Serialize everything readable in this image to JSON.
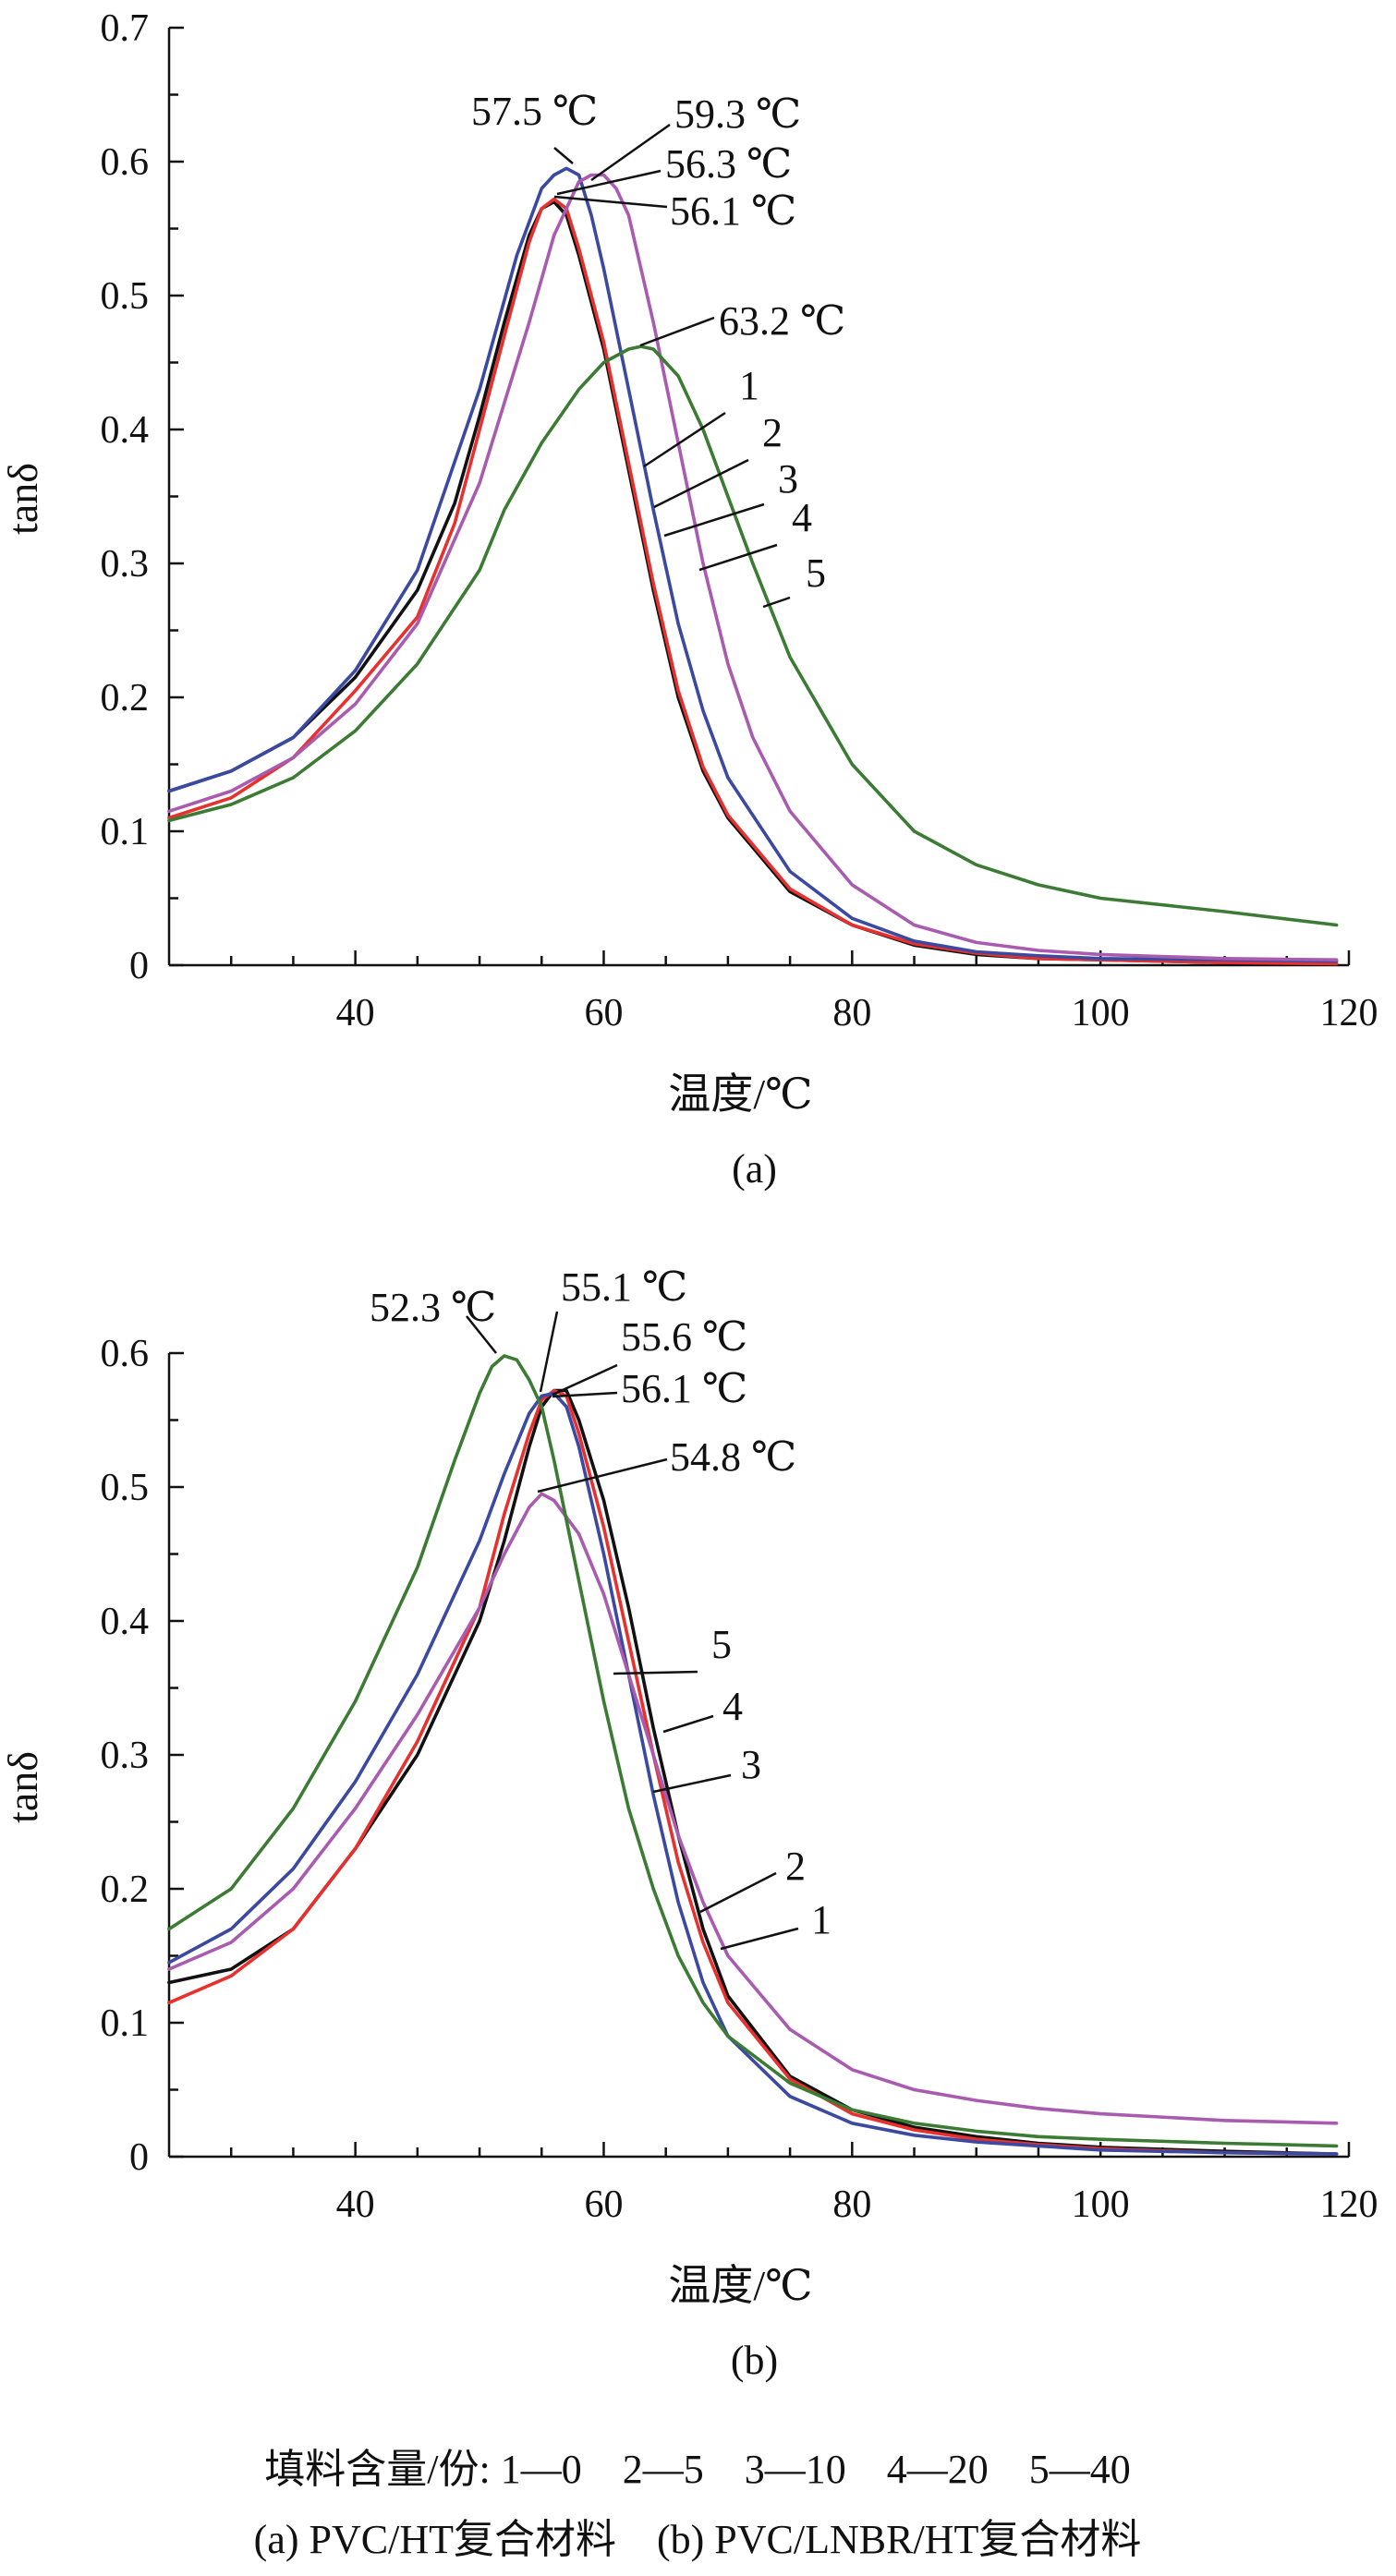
{
  "colors": {
    "1": "#111111",
    "2": "#e8312f",
    "3": "#3b4aa0",
    "4": "#a95bb0",
    "5": "#3c7b34"
  },
  "chart_data": [
    {
      "type": "line",
      "caption": "(a)",
      "xlabel": "温度/℃",
      "ylabel": "tanδ",
      "xlim": [
        25,
        120
      ],
      "ylim": [
        0,
        0.7
      ],
      "xticks": [
        40,
        60,
        80,
        100,
        120
      ],
      "yticks": [
        0,
        0.1,
        0.2,
        0.3,
        0.4,
        0.5,
        0.6,
        0.7
      ],
      "grid": false,
      "series": [
        {
          "name": "1",
          "color_key": "1",
          "x": [
            25,
            30,
            35,
            40,
            45,
            48,
            50,
            52,
            54,
            55,
            56,
            57,
            58,
            60,
            62,
            64,
            66,
            68,
            70,
            75,
            80,
            85,
            90,
            95,
            100,
            110,
            119
          ],
          "y": [
            0.13,
            0.145,
            0.17,
            0.215,
            0.28,
            0.345,
            0.41,
            0.48,
            0.545,
            0.565,
            0.57,
            0.56,
            0.53,
            0.46,
            0.37,
            0.28,
            0.2,
            0.145,
            0.11,
            0.055,
            0.03,
            0.015,
            0.008,
            0.005,
            0.004,
            0.002,
            0.001
          ]
        },
        {
          "name": "2",
          "color_key": "2",
          "x": [
            25,
            30,
            35,
            40,
            45,
            48,
            50,
            52,
            54,
            55,
            56,
            57,
            58,
            60,
            62,
            64,
            66,
            68,
            70,
            75,
            80,
            85,
            90,
            95,
            100,
            110,
            119
          ],
          "y": [
            0.11,
            0.125,
            0.155,
            0.205,
            0.26,
            0.33,
            0.4,
            0.47,
            0.54,
            0.565,
            0.572,
            0.565,
            0.535,
            0.465,
            0.375,
            0.285,
            0.205,
            0.148,
            0.112,
            0.057,
            0.03,
            0.016,
            0.009,
            0.005,
            0.004,
            0.002,
            0.001
          ]
        },
        {
          "name": "3",
          "color_key": "3",
          "x": [
            25,
            30,
            35,
            40,
            45,
            50,
            53,
            55,
            56,
            57,
            58,
            59,
            60,
            62,
            64,
            66,
            68,
            70,
            75,
            80,
            85,
            90,
            95,
            100,
            110,
            119
          ],
          "y": [
            0.13,
            0.145,
            0.17,
            0.22,
            0.295,
            0.43,
            0.53,
            0.58,
            0.59,
            0.595,
            0.59,
            0.56,
            0.52,
            0.43,
            0.34,
            0.255,
            0.19,
            0.14,
            0.07,
            0.035,
            0.018,
            0.01,
            0.007,
            0.005,
            0.004,
            0.003
          ]
        },
        {
          "name": "4",
          "color_key": "4",
          "x": [
            25,
            30,
            35,
            40,
            45,
            50,
            54,
            56,
            58,
            59,
            60,
            61,
            62,
            64,
            66,
            68,
            70,
            72,
            75,
            80,
            85,
            90,
            95,
            100,
            110,
            119
          ],
          "y": [
            0.115,
            0.13,
            0.155,
            0.195,
            0.255,
            0.36,
            0.48,
            0.545,
            0.585,
            0.59,
            0.59,
            0.58,
            0.56,
            0.48,
            0.39,
            0.3,
            0.225,
            0.17,
            0.115,
            0.06,
            0.03,
            0.017,
            0.011,
            0.008,
            0.005,
            0.004
          ]
        },
        {
          "name": "5",
          "color_key": "5",
          "x": [
            25,
            30,
            35,
            40,
            45,
            50,
            52,
            55,
            58,
            60,
            62,
            63,
            64,
            66,
            68,
            70,
            72,
            75,
            80,
            85,
            90,
            95,
            100,
            110,
            119
          ],
          "y": [
            0.108,
            0.12,
            0.14,
            0.175,
            0.225,
            0.295,
            0.34,
            0.39,
            0.43,
            0.45,
            0.46,
            0.462,
            0.46,
            0.44,
            0.4,
            0.35,
            0.3,
            0.23,
            0.15,
            0.1,
            0.075,
            0.06,
            0.05,
            0.04,
            0.03
          ]
        }
      ],
      "peak_labels": [
        {
          "text": "57.5 ℃",
          "x": 57.5,
          "y": 0.595
        },
        {
          "text": "59.3 ℃",
          "x": 59.3,
          "y": 0.59
        },
        {
          "text": "56.3 ℃",
          "x": 56.3,
          "y": 0.572
        },
        {
          "text": "56.1 ℃",
          "x": 56.1,
          "y": 0.57
        },
        {
          "text": "63.2 ℃",
          "x": 63.2,
          "y": 0.462
        }
      ],
      "curve_labels": [
        {
          "text": "1",
          "x": 62.6,
          "y": 0.37
        },
        {
          "text": "2",
          "x": 63.8,
          "y": 0.34
        },
        {
          "text": "3",
          "x": 64.7,
          "y": 0.32
        },
        {
          "text": "4",
          "x": 65.7,
          "y": 0.3
        },
        {
          "text": "5",
          "x": 70.3,
          "y": 0.28
        }
      ]
    },
    {
      "type": "line",
      "caption": "(b)",
      "xlabel": "温度/℃",
      "ylabel": "tanδ",
      "xlim": [
        25,
        120
      ],
      "ylim": [
        0,
        0.6
      ],
      "xticks": [
        40,
        60,
        80,
        100,
        120
      ],
      "yticks": [
        0,
        0.1,
        0.2,
        0.3,
        0.4,
        0.5,
        0.6
      ],
      "grid": false,
      "series": [
        {
          "name": "1",
          "color_key": "1",
          "x": [
            25,
            30,
            35,
            40,
            45,
            50,
            52,
            54,
            55,
            56,
            57,
            58,
            60,
            62,
            64,
            66,
            68,
            70,
            75,
            80,
            85,
            90,
            95,
            100,
            110,
            119
          ],
          "y": [
            0.13,
            0.14,
            0.17,
            0.23,
            0.3,
            0.4,
            0.46,
            0.53,
            0.56,
            0.572,
            0.572,
            0.55,
            0.49,
            0.41,
            0.32,
            0.24,
            0.17,
            0.12,
            0.06,
            0.035,
            0.022,
            0.015,
            0.01,
            0.007,
            0.004,
            0.002
          ]
        },
        {
          "name": "2",
          "color_key": "2",
          "x": [
            25,
            30,
            35,
            40,
            45,
            50,
            52,
            54,
            55,
            56,
            57,
            58,
            60,
            62,
            64,
            66,
            68,
            70,
            75,
            80,
            85,
            90,
            95,
            100,
            110,
            119
          ],
          "y": [
            0.115,
            0.135,
            0.17,
            0.23,
            0.31,
            0.41,
            0.48,
            0.54,
            0.565,
            0.572,
            0.568,
            0.54,
            0.47,
            0.385,
            0.3,
            0.22,
            0.16,
            0.115,
            0.058,
            0.032,
            0.02,
            0.013,
            0.009,
            0.006,
            0.003,
            0.002
          ]
        },
        {
          "name": "3",
          "color_key": "3",
          "x": [
            25,
            30,
            35,
            40,
            45,
            50,
            52,
            54,
            55,
            56,
            57,
            58,
            60,
            62,
            64,
            66,
            68,
            70,
            75,
            80,
            85,
            90,
            95,
            100,
            110,
            119
          ],
          "y": [
            0.145,
            0.17,
            0.215,
            0.28,
            0.36,
            0.46,
            0.51,
            0.555,
            0.568,
            0.57,
            0.56,
            0.53,
            0.45,
            0.36,
            0.27,
            0.19,
            0.13,
            0.09,
            0.045,
            0.025,
            0.016,
            0.011,
            0.008,
            0.005,
            0.003,
            0.002
          ]
        },
        {
          "name": "4",
          "color_key": "4",
          "x": [
            25,
            30,
            35,
            40,
            45,
            50,
            52,
            54,
            55,
            56,
            58,
            60,
            62,
            64,
            66,
            68,
            70,
            75,
            80,
            85,
            90,
            95,
            100,
            110,
            119
          ],
          "y": [
            0.14,
            0.16,
            0.2,
            0.26,
            0.33,
            0.41,
            0.45,
            0.485,
            0.495,
            0.49,
            0.465,
            0.42,
            0.36,
            0.3,
            0.24,
            0.19,
            0.15,
            0.095,
            0.065,
            0.05,
            0.042,
            0.036,
            0.032,
            0.027,
            0.025
          ]
        },
        {
          "name": "5",
          "color_key": "5",
          "x": [
            25,
            30,
            35,
            40,
            45,
            48,
            50,
            51,
            52,
            53,
            54,
            55,
            56,
            58,
            60,
            62,
            64,
            66,
            68,
            70,
            75,
            80,
            85,
            90,
            95,
            100,
            110,
            119
          ],
          "y": [
            0.17,
            0.2,
            0.26,
            0.34,
            0.44,
            0.52,
            0.57,
            0.59,
            0.598,
            0.595,
            0.58,
            0.56,
            0.52,
            0.43,
            0.34,
            0.26,
            0.2,
            0.15,
            0.115,
            0.09,
            0.055,
            0.035,
            0.025,
            0.019,
            0.015,
            0.013,
            0.01,
            0.008
          ]
        }
      ],
      "peak_labels": [
        {
          "text": "52.3 ℃",
          "x": 52.3,
          "y": 0.598
        },
        {
          "text": "55.1 ℃",
          "x": 55.1,
          "y": 0.568
        },
        {
          "text": "55.6 ℃",
          "x": 55.6,
          "y": 0.572
        },
        {
          "text": "56.1 ℃",
          "x": 56.1,
          "y": 0.572
        },
        {
          "text": "54.8 ℃",
          "x": 54.8,
          "y": 0.495
        }
      ],
      "curve_labels": [
        {
          "text": "5",
          "x": 60.3,
          "y": 0.36
        },
        {
          "text": "4",
          "x": 64.3,
          "y": 0.315
        },
        {
          "text": "3",
          "x": 63.8,
          "y": 0.275
        },
        {
          "text": "2",
          "x": 67.0,
          "y": 0.18
        },
        {
          "text": "1",
          "x": 68.8,
          "y": 0.155
        }
      ]
    }
  ],
  "footer": {
    "legend_line": "填料含量/份: 1—0    2—5    3—10    4—20    5—40",
    "caption_line": "(a) PVC/HT复合材料    (b) PVC/LNBR/HT复合材料"
  }
}
